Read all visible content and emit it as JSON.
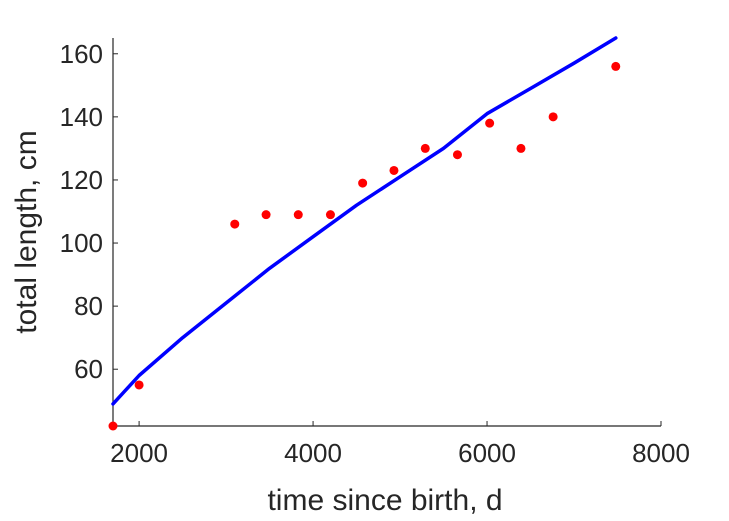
{
  "chart_data": {
    "type": "scatter",
    "xlabel": "time since birth, d",
    "ylabel": "total length, cm",
    "xlim": [
      1700,
      8000
    ],
    "ylim": [
      42,
      165
    ],
    "xticks": [
      2000,
      4000,
      6000,
      8000
    ],
    "yticks": [
      60,
      80,
      100,
      120,
      140,
      160
    ],
    "grid": false,
    "series": [
      {
        "kind": "points",
        "color": "#ff0000",
        "points": [
          {
            "x": 1700,
            "y": 42
          },
          {
            "x": 2000,
            "y": 55
          },
          {
            "x": 3100,
            "y": 106
          },
          {
            "x": 3460,
            "y": 109
          },
          {
            "x": 3830,
            "y": 109
          },
          {
            "x": 4200,
            "y": 109
          },
          {
            "x": 4570,
            "y": 119
          },
          {
            "x": 4930,
            "y": 123
          },
          {
            "x": 5290,
            "y": 130
          },
          {
            "x": 5660,
            "y": 128
          },
          {
            "x": 6030,
            "y": 138
          },
          {
            "x": 6390,
            "y": 130
          },
          {
            "x": 6760,
            "y": 140
          },
          {
            "x": 7480,
            "y": 156
          }
        ]
      },
      {
        "kind": "curve",
        "color": "#0000ff",
        "points": [
          {
            "x": 1700,
            "y": 49
          },
          {
            "x": 2000,
            "y": 58
          },
          {
            "x": 2500,
            "y": 70
          },
          {
            "x": 3000,
            "y": 81
          },
          {
            "x": 3500,
            "y": 92
          },
          {
            "x": 4000,
            "y": 102
          },
          {
            "x": 4500,
            "y": 112
          },
          {
            "x": 5000,
            "y": 121
          },
          {
            "x": 5500,
            "y": 130
          },
          {
            "x": 6000,
            "y": 141
          },
          {
            "x": 6500,
            "y": 149
          },
          {
            "x": 7000,
            "y": 157
          },
          {
            "x": 7480,
            "y": 165
          }
        ]
      }
    ]
  }
}
